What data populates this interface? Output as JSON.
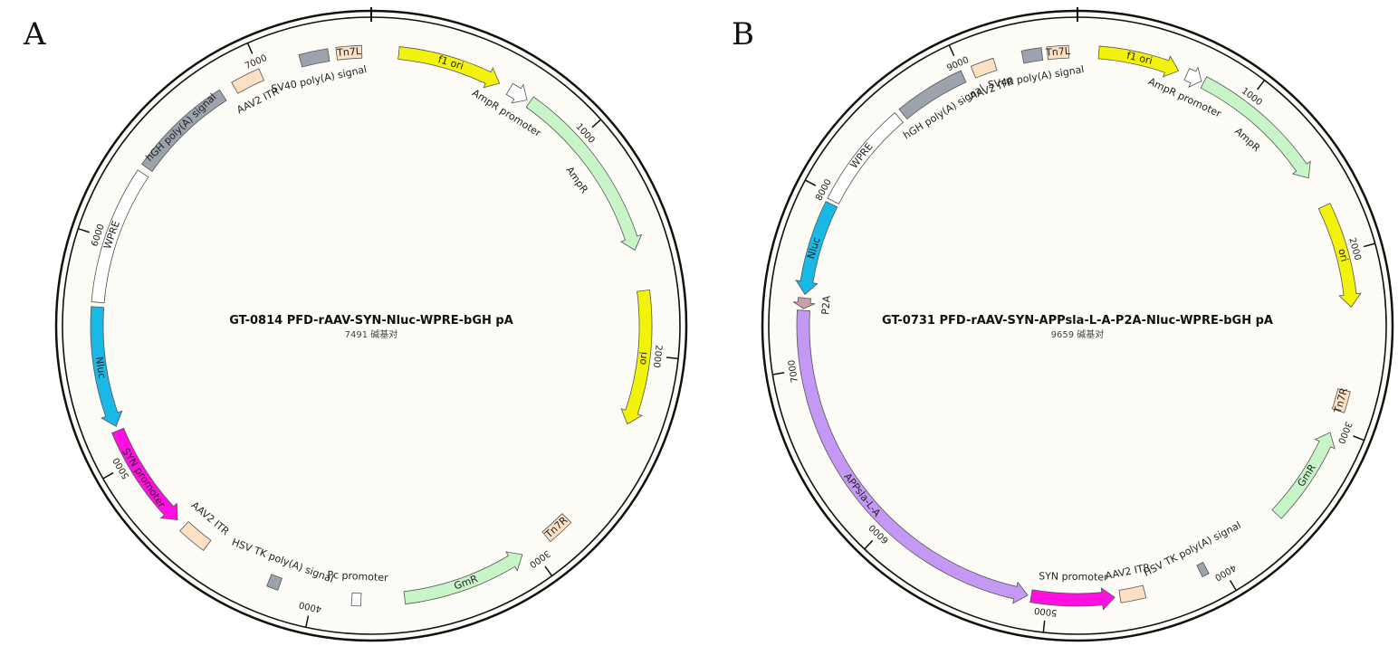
{
  "panels": [
    {
      "letter": "A",
      "name": "GT-0814  PFD-rAAV-SYN-Nluc-WPRE-bGH pA",
      "size_text": "7491 碱基对",
      "length": 7491,
      "ticks": [
        1000,
        2000,
        3000,
        4000,
        5000,
        6000,
        7000
      ],
      "features": [
        {
          "label": "f1 ori",
          "start": 120,
          "end": 580,
          "dir": 1,
          "color": "#f2f20a",
          "kind": "arrow",
          "label_in": true
        },
        {
          "label": "AmpR promoter",
          "start": 630,
          "end": 720,
          "dir": 1,
          "color": "#ffffff",
          "kind": "arrow",
          "label_in": false
        },
        {
          "label": "AmpR",
          "start": 735,
          "end": 1540,
          "dir": 1,
          "color": "#c8f5c8",
          "kind": "arrow",
          "label_in": false
        },
        {
          "label": "ori",
          "start": 1720,
          "end": 2310,
          "dir": 1,
          "color": "#f2f20a",
          "kind": "arrow",
          "label_in": true
        },
        {
          "label": "Tn7R",
          "start": 2800,
          "end": 2920,
          "dir": 0,
          "color": "#fce0c4",
          "kind": "box",
          "label_in": true
        },
        {
          "label": "GmR",
          "start": 3050,
          "end": 3600,
          "dir": -1,
          "color": "#c8f5c8",
          "kind": "arrow",
          "label_in": true
        },
        {
          "label": "Pc promoter",
          "start": 3790,
          "end": 3830,
          "dir": 0,
          "color": "#ffffff",
          "kind": "box",
          "label_in": false
        },
        {
          "label": "HSV TK poly(A) signal",
          "start": 4150,
          "end": 4200,
          "dir": 0,
          "color": "#9ca3ad",
          "kind": "box",
          "label_in": false
        },
        {
          "label": "AAV2 ITR",
          "start": 4510,
          "end": 4640,
          "dir": 0,
          "color": "#fce0c4",
          "kind": "box",
          "label_in": false
        },
        {
          "label": "SYN promoter",
          "start": 4680,
          "end": 5150,
          "dir": -1,
          "color": "#ff10e0",
          "kind": "arrow",
          "label_in": true
        },
        {
          "label": "Nluc",
          "start": 5170,
          "end": 5700,
          "dir": -1,
          "color": "#1ab8e6",
          "kind": "arrow",
          "label_in": true
        },
        {
          "label": "WPRE",
          "start": 5720,
          "end": 6320,
          "dir": 0,
          "color": "#ffffff",
          "kind": "box",
          "label_in": true
        },
        {
          "label": "hGH poly(A) signal",
          "start": 6350,
          "end": 6810,
          "dir": 0,
          "color": "#9ca3ad",
          "kind": "box",
          "label_in": true
        },
        {
          "label": "AAV2 ITR",
          "start": 6870,
          "end": 7000,
          "dir": 0,
          "color": "#fce0c4",
          "kind": "box",
          "label_in": false
        },
        {
          "label": "SV40 poly(A) signal",
          "start": 7180,
          "end": 7305,
          "dir": 0,
          "color": "#9ca3ad",
          "kind": "box",
          "label_in": false
        },
        {
          "label": "Tn7L",
          "start": 7340,
          "end": 7450,
          "dir": 0,
          "color": "#fce0c4",
          "kind": "box",
          "label_in": true
        }
      ]
    },
    {
      "letter": "B",
      "name": "GT-0731  PFD-rAAV-SYN-APPsla-L-A-P2A-Nluc-WPRE-bGH pA",
      "size_text": "9659 碱基对",
      "length": 9659,
      "ticks": [
        1000,
        2000,
        3000,
        4000,
        5000,
        6000,
        7000,
        8000,
        9000
      ],
      "features": [
        {
          "label": "f1 ori",
          "start": 120,
          "end": 580,
          "dir": 1,
          "color": "#f2f20a",
          "kind": "arrow",
          "label_in": true
        },
        {
          "label": "AmpR promoter",
          "start": 630,
          "end": 720,
          "dir": 1,
          "color": "#ffffff",
          "kind": "arrow",
          "label_in": false
        },
        {
          "label": "AmpR",
          "start": 735,
          "end": 1540,
          "dir": 1,
          "color": "#c8f5c8",
          "kind": "arrow",
          "label_in": false
        },
        {
          "label": "ori",
          "start": 1720,
          "end": 2310,
          "dir": 1,
          "color": "#f2f20a",
          "kind": "arrow",
          "label_in": true
        },
        {
          "label": "Tn7R",
          "start": 2780,
          "end": 2900,
          "dir": 0,
          "color": "#fce0c4",
          "kind": "box",
          "label_in": true
        },
        {
          "label": "GmR",
          "start": 3030,
          "end": 3580,
          "dir": -1,
          "color": "#c8f5c8",
          "kind": "arrow",
          "label_in": true
        },
        {
          "label": "HSV TK poly(A) signal",
          "start": 4080,
          "end": 4120,
          "dir": 0,
          "color": "#9ca3ad",
          "kind": "box",
          "label_in": false
        },
        {
          "label": "AAV2 ITR",
          "start": 4450,
          "end": 4590,
          "dir": 0,
          "color": "#fce0c4",
          "kind": "box",
          "label_in": false
        },
        {
          "label": "SYN promoter",
          "start": 4620,
          "end": 5090,
          "dir": -1,
          "color": "#ff10e0",
          "kind": "arrow",
          "label_in": false
        },
        {
          "label": "APPsla-L-A",
          "start": 5110,
          "end": 7330,
          "dir": -1,
          "color": "#c499f5",
          "kind": "arrow",
          "label_in": true
        },
        {
          "label": "P2A",
          "start": 7340,
          "end": 7400,
          "dir": -1,
          "color": "#c9a0a8",
          "kind": "arrow",
          "label_in": false
        },
        {
          "label": "Nluc",
          "start": 7420,
          "end": 7950,
          "dir": -1,
          "color": "#1ab8e6",
          "kind": "arrow",
          "label_in": true
        },
        {
          "label": "WPRE",
          "start": 7970,
          "end": 8570,
          "dir": 0,
          "color": "#ffffff",
          "kind": "box",
          "label_in": true
        },
        {
          "label": "hGH poly(A) signal",
          "start": 8600,
          "end": 9000,
          "dir": 0,
          "color": "#9ca3ad",
          "kind": "box",
          "label_in": false
        },
        {
          "label": "AAV2 ITR",
          "start": 9060,
          "end": 9190,
          "dir": 0,
          "color": "#fce0c4",
          "kind": "box",
          "label_in": false
        },
        {
          "label": "SV40 poly(A) signal",
          "start": 9350,
          "end": 9460,
          "dir": 0,
          "color": "#9ca3ad",
          "kind": "box",
          "label_in": false
        },
        {
          "label": "Tn7L",
          "start": 9490,
          "end": 9610,
          "dir": 0,
          "color": "#fce0c4",
          "kind": "box",
          "label_in": true
        }
      ]
    }
  ]
}
